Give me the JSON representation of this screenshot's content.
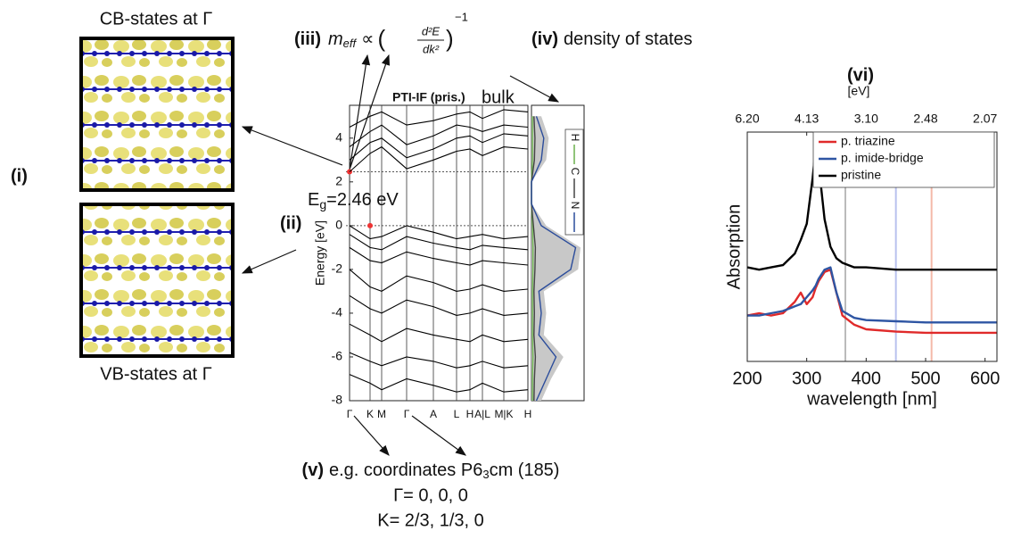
{
  "labels": {
    "cb_title": "CB-states at Γ",
    "vb_title": "VB-states at Γ",
    "panel_i": "(i)",
    "panel_ii": "(ii)",
    "panel_iii": "(iii)",
    "formula": {
      "m": "m",
      "sub": "eff",
      "prop": "∝",
      "num": "d²E",
      "den": "dk²",
      "exp": "−1"
    },
    "panel_iv": "(iv)",
    "dos_text": "density of states",
    "panel_v": "(v)",
    "coords": {
      "pre": "e.g. coordinates P6",
      "sub": "3",
      "post": "cm (185)"
    },
    "gamma_coord": "Γ= 0, 0, 0",
    "k_coord": "K= 2/3, 1/3, 0",
    "panel_vi": "(vi)"
  },
  "chart_data": [
    {
      "type": "line",
      "title": "PTI-IF (pris.)",
      "subtitle": "bulk",
      "ylabel": "Energy [eV]",
      "gap_label": {
        "E": "E",
        "sub": "g",
        "rest": "=2.46 eV"
      },
      "ylim": [
        -8,
        5.5
      ],
      "yticks": [
        4,
        2,
        0,
        -2,
        -4,
        -6,
        -8
      ],
      "xlim": [
        0,
        1
      ],
      "xticks": [
        {
          "value": 0,
          "label": "Γ"
        },
        {
          "value": 0.115,
          "label": "K"
        },
        {
          "value": 0.18,
          "label": "M"
        },
        {
          "value": 0.32,
          "label": "Γ"
        },
        {
          "value": 0.47,
          "label": "A"
        },
        {
          "value": 0.6,
          "label": "L"
        },
        {
          "value": 0.675,
          "label": "H"
        },
        {
          "value": 0.745,
          "label": "A|L"
        },
        {
          "value": 0.865,
          "label": "M|K"
        },
        {
          "value": 1,
          "label": "H"
        }
      ],
      "hlines": [
        0,
        2.46
      ],
      "x": [
        0,
        0.115,
        0.18,
        0.32,
        0.47,
        0.6,
        0.675,
        0.745,
        0.865,
        1
      ],
      "series": [
        {
          "color": "#000",
          "values": [
            2.46,
            3.3,
            3.6,
            2.6,
            3.0,
            3.4,
            3.5,
            3.2,
            3.6,
            3.5
          ]
        },
        {
          "color": "#000",
          "values": [
            3.0,
            3.8,
            4.0,
            3.1,
            3.5,
            4.0,
            4.1,
            3.8,
            4.2,
            4.1
          ]
        },
        {
          "color": "#000",
          "values": [
            3.6,
            4.3,
            4.6,
            3.7,
            4.1,
            4.6,
            4.5,
            4.3,
            4.6,
            4.5
          ]
        },
        {
          "color": "#000",
          "values": [
            4.5,
            5.0,
            5.2,
            4.6,
            4.8,
            5.1,
            5.2,
            4.9,
            5.3,
            5.2
          ]
        },
        {
          "color": "#000",
          "values": [
            0,
            -0.6,
            -0.5,
            0,
            -0.3,
            -0.6,
            -0.5,
            -0.4,
            -0.6,
            -0.5
          ]
        },
        {
          "color": "#000",
          "values": [
            -0.4,
            -1.0,
            -1.1,
            -0.5,
            -0.8,
            -1.0,
            -1.1,
            -0.9,
            -1.0,
            -1.1
          ]
        },
        {
          "color": "#000",
          "values": [
            -1.0,
            -1.6,
            -1.7,
            -1.2,
            -1.5,
            -1.7,
            -1.8,
            -1.6,
            -1.7,
            -1.8
          ]
        },
        {
          "color": "#000",
          "values": [
            -2.0,
            -2.8,
            -3.0,
            -2.3,
            -2.6,
            -3.0,
            -2.9,
            -2.7,
            -3.0,
            -2.9
          ]
        },
        {
          "color": "#000",
          "values": [
            -3.2,
            -3.8,
            -4.0,
            -3.4,
            -3.7,
            -4.1,
            -4.0,
            -3.8,
            -4.1,
            -4.0
          ]
        },
        {
          "color": "#000",
          "values": [
            -4.5,
            -5.0,
            -5.3,
            -4.7,
            -5.0,
            -5.2,
            -5.3,
            -5.0,
            -5.3,
            -5.2
          ]
        },
        {
          "color": "#000",
          "values": [
            -5.8,
            -6.2,
            -6.4,
            -6.0,
            -6.2,
            -6.5,
            -6.4,
            -6.2,
            -6.5,
            -6.4
          ]
        },
        {
          "color": "#000",
          "values": [
            -6.8,
            -7.2,
            -7.5,
            -7.0,
            -7.3,
            -7.6,
            -7.5,
            -7.2,
            -7.6,
            -7.5
          ]
        }
      ]
    },
    {
      "type": "dos",
      "xlim": [
        -8,
        5.5
      ],
      "ylim": [
        0,
        1
      ],
      "x": [
        -8,
        -7,
        -6,
        -5,
        -4,
        -3,
        -2,
        -1,
        0,
        1,
        2,
        3,
        4,
        5
      ],
      "total": {
        "color": "#c8c8c8",
        "values": [
          0.2,
          0.4,
          0.65,
          0.25,
          0.3,
          0.25,
          0.95,
          1.0,
          0.3,
          0,
          0,
          0.3,
          0.35,
          0.2
        ]
      },
      "series": [
        {
          "name": "H",
          "color": "#6ab04c",
          "values": [
            0.02,
            0.02,
            0.03,
            0.02,
            0.02,
            0.02,
            0.03,
            0.03,
            0.02,
            0,
            0,
            0.02,
            0.02,
            0.02
          ]
        },
        {
          "name": "C",
          "color": "#444",
          "values": [
            0.05,
            0.06,
            0.08,
            0.05,
            0.06,
            0.05,
            0.07,
            0.08,
            0.04,
            0,
            0,
            0.06,
            0.07,
            0.05
          ]
        },
        {
          "name": "N",
          "color": "#2b4c9b",
          "values": [
            0.1,
            0.3,
            0.5,
            0.15,
            0.2,
            0.15,
            0.8,
            0.9,
            0.2,
            0,
            0,
            0.2,
            0.25,
            0.1
          ]
        }
      ]
    },
    {
      "type": "line",
      "xlabel": "wavelength [nm]",
      "ylabel": "Absorption",
      "x2label": "[eV]",
      "xlim": [
        200,
        620
      ],
      "ylim": [
        0,
        1
      ],
      "xticks": [
        200,
        300,
        400,
        500,
        600
      ],
      "x2ticks": [
        {
          "value": 200,
          "label": "6.20"
        },
        {
          "value": 300,
          "label": "4.13"
        },
        {
          "value": 400,
          "label": "3.10"
        },
        {
          "value": 500,
          "label": "2.48"
        },
        {
          "value": 600,
          "label": "2.07"
        }
      ],
      "vlines": [
        {
          "value": 365,
          "color": "#bbbbbb"
        },
        {
          "value": 450,
          "color": "#b9c1ee"
        },
        {
          "value": 510,
          "color": "#f4b9a8"
        }
      ],
      "legend": "upper right",
      "x": [
        200,
        220,
        240,
        260,
        280,
        290,
        300,
        310,
        315,
        320,
        330,
        340,
        350,
        360,
        380,
        400,
        450,
        500,
        550,
        620
      ],
      "series": [
        {
          "name": "p. triazine",
          "color": "#e02a2a",
          "values": [
            0.2,
            0.21,
            0.2,
            0.21,
            0.26,
            0.3,
            0.25,
            0.28,
            0.32,
            0.35,
            0.39,
            0.4,
            0.3,
            0.2,
            0.16,
            0.14,
            0.13,
            0.125,
            0.125,
            0.125
          ]
        },
        {
          "name": "p. imide-bridge",
          "color": "#2e55a3",
          "values": [
            0.2,
            0.2,
            0.21,
            0.22,
            0.24,
            0.25,
            0.28,
            0.31,
            0.33,
            0.36,
            0.4,
            0.41,
            0.3,
            0.22,
            0.19,
            0.18,
            0.175,
            0.17,
            0.17,
            0.17
          ]
        },
        {
          "name": "pristine",
          "color": "#000000",
          "values": [
            0.41,
            0.4,
            0.41,
            0.42,
            0.47,
            0.53,
            0.6,
            0.8,
            0.93,
            0.86,
            0.62,
            0.5,
            0.45,
            0.43,
            0.41,
            0.41,
            0.4,
            0.4,
            0.4,
            0.4
          ]
        }
      ]
    }
  ]
}
